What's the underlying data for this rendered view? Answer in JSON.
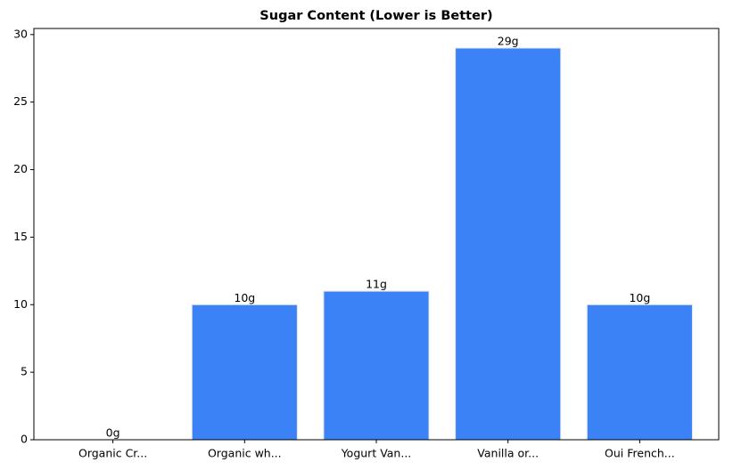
{
  "chart_data": {
    "type": "bar",
    "title": "Sugar Content (Lower is Better)",
    "categories": [
      "Organic Cr...",
      "Organic wh...",
      "Yogurt Van...",
      "Vanilla or...",
      "Oui French..."
    ],
    "values": [
      0,
      10,
      11,
      29,
      10
    ],
    "value_labels": [
      "0g",
      "10g",
      "11g",
      "29g",
      "10g"
    ],
    "color": "#3b82f6",
    "ylim": [
      0,
      30.45
    ],
    "yticks": [
      0,
      5,
      10,
      15,
      20,
      25,
      30
    ],
    "grid": false
  }
}
